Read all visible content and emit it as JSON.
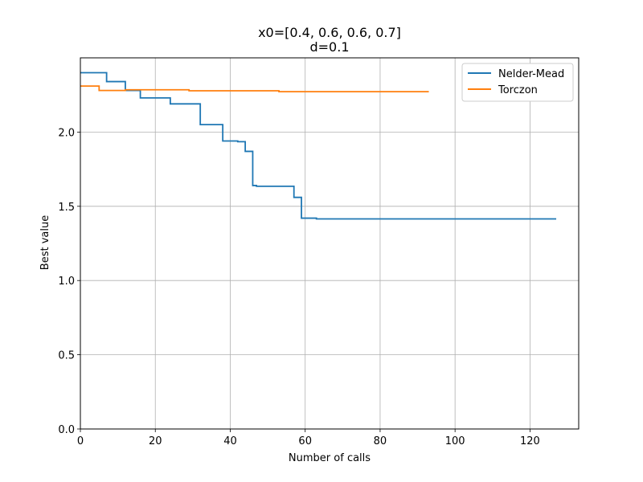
{
  "chart_data": {
    "type": "line",
    "title": "x0=[0.4, 0.6, 0.6, 0.7]",
    "subtitle": "d=0.1",
    "xlabel": "Number of calls",
    "ylabel": "Best value",
    "xlim": [
      0,
      133
    ],
    "ylim": [
      0.0,
      2.5
    ],
    "x_ticks": [
      0,
      20,
      40,
      60,
      80,
      100,
      120
    ],
    "y_ticks": [
      0.0,
      0.5,
      1.0,
      1.5,
      2.0
    ],
    "x_tick_labels": [
      "0",
      "20",
      "40",
      "60",
      "80",
      "100",
      "120"
    ],
    "y_tick_labels": [
      "0.0",
      "0.5",
      "1.0",
      "1.5",
      "2.0"
    ],
    "grid": true,
    "legend": "top-right",
    "step": "post",
    "series": [
      {
        "name": "Nelder-Mead",
        "color": "#1f77b4",
        "x": [
          0,
          7,
          12,
          16,
          24,
          32,
          38,
          42,
          44,
          46,
          47,
          57,
          59,
          63,
          127
        ],
        "y": [
          2.4,
          2.34,
          2.28,
          2.23,
          2.19,
          2.05,
          1.94,
          1.935,
          1.87,
          1.64,
          1.635,
          1.56,
          1.42,
          1.415,
          1.415
        ]
      },
      {
        "name": "Torczon",
        "color": "#ff7f0e",
        "x": [
          0,
          5,
          12,
          29,
          53,
          93
        ],
        "y": [
          2.31,
          2.28,
          2.285,
          2.278,
          2.272,
          2.272
        ]
      }
    ]
  }
}
